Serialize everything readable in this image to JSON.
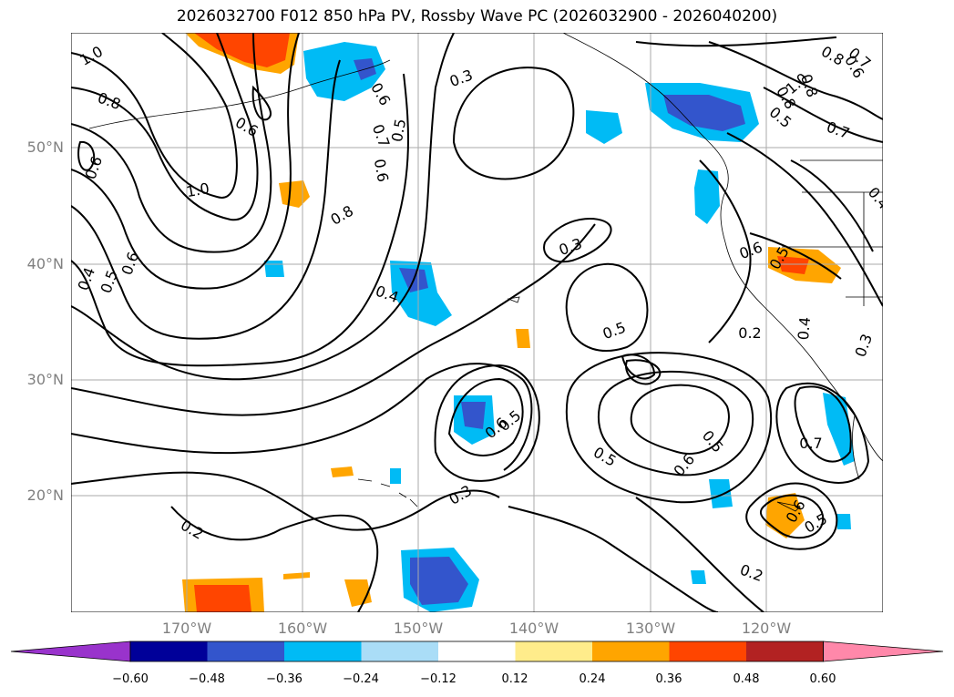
{
  "title": "2026032700 F012 850 hPa PV, Rossby Wave PC (2026032900 - 2026040200)",
  "lat_labels": [
    "50°N",
    "40°N",
    "30°N",
    "20°N"
  ],
  "lon_labels": [
    "170°W",
    "160°W",
    "150°W",
    "140°W",
    "130°W",
    "120°W"
  ],
  "colorbar": {
    "ticks": [
      "−0.60",
      "−0.48",
      "−0.36",
      "−0.24",
      "−0.12",
      "0.12",
      "0.24",
      "0.36",
      "0.48",
      "0.60"
    ],
    "colors": [
      "#9933cc",
      "#000099",
      "#3355cc",
      "#00bbf5",
      "#aaddf7",
      "#ffffff",
      "#ffec8b",
      "#ffa500",
      "#ff4500",
      "#b22222",
      "#ff88aa"
    ]
  },
  "contour_labels": [
    "1.0",
    "0.8",
    "0.6",
    "0.6",
    "1.0",
    "0.8",
    "0.6",
    "0.4",
    "0.5",
    "0.6",
    "0.7",
    "0.6",
    "0.5",
    "0.3",
    "0.3",
    "0.4",
    "0.5",
    "0.6",
    "0.5",
    "0.5",
    "0.5",
    "0.6",
    "0.7",
    "0.2",
    "0.3",
    "0.2",
    "0.8",
    "0.5",
    "0.7",
    "0.8",
    "1.0",
    "0.6",
    "0.7",
    "0.8",
    "0.5",
    "0.6",
    "0.4",
    "0.3",
    "0.2",
    "0.5",
    "0.6",
    "0.2",
    "0.8",
    "0.6",
    "0.4"
  ]
}
